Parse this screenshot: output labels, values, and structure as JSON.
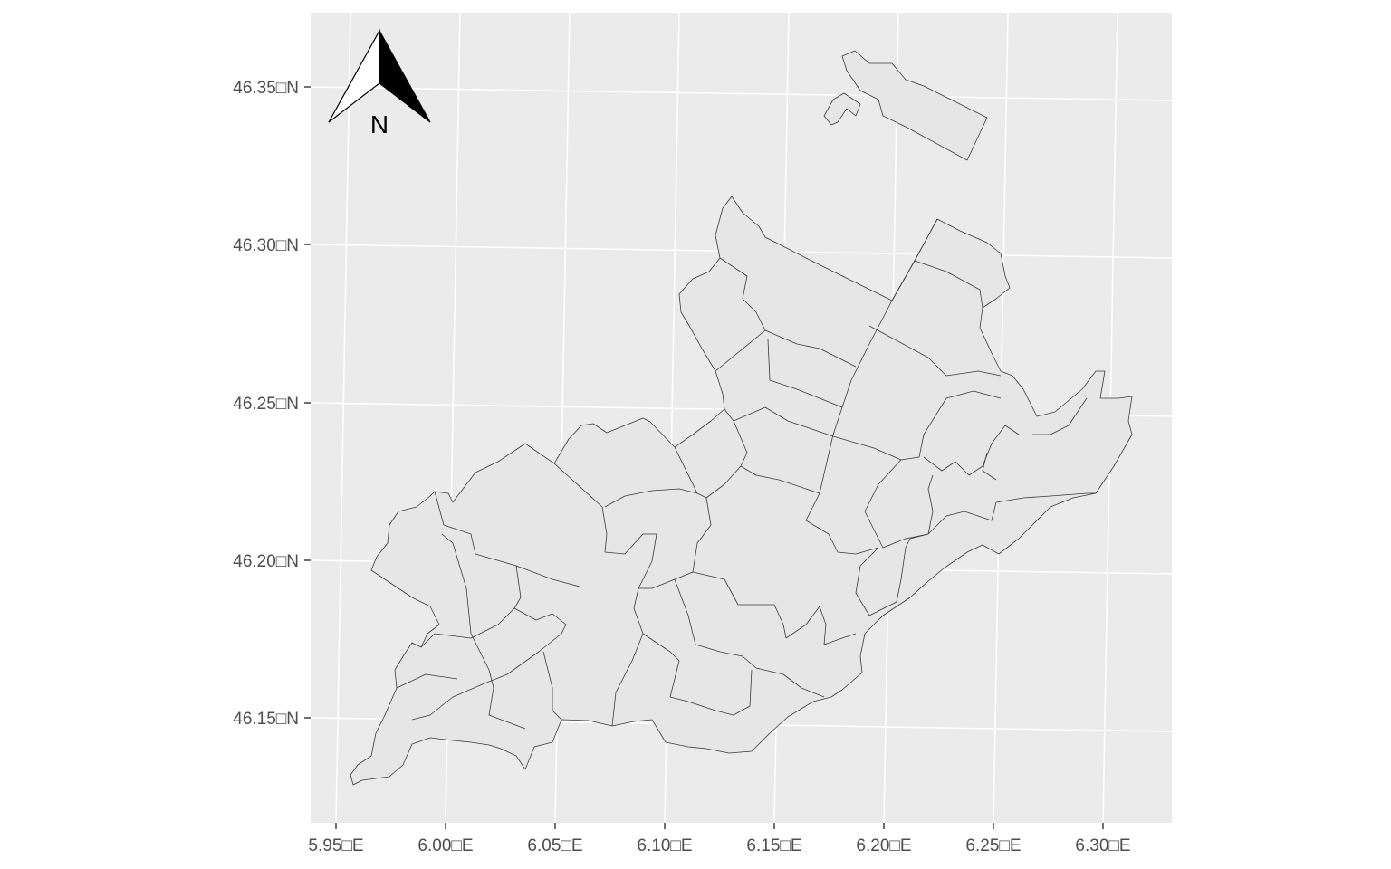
{
  "map": {
    "panel_background": "#ebebeb",
    "grid_color": "#ffffff",
    "fill_color": "#e6e6e6",
    "boundary_color": "#3a3a3a",
    "tick_label_color": "#4d4d4d"
  },
  "axes": {
    "x_ticks": [
      "5.95□E",
      "6.00□E",
      "6.05□E",
      "6.10□E",
      "6.15□E",
      "6.20□E",
      "6.25□E",
      "6.30□E"
    ],
    "y_ticks": [
      "46.35□N",
      "46.30□N",
      "46.25□N",
      "46.20□N",
      "46.15□N"
    ]
  },
  "north_arrow": {
    "letter": "N",
    "icon": "north-arrow-icon"
  }
}
